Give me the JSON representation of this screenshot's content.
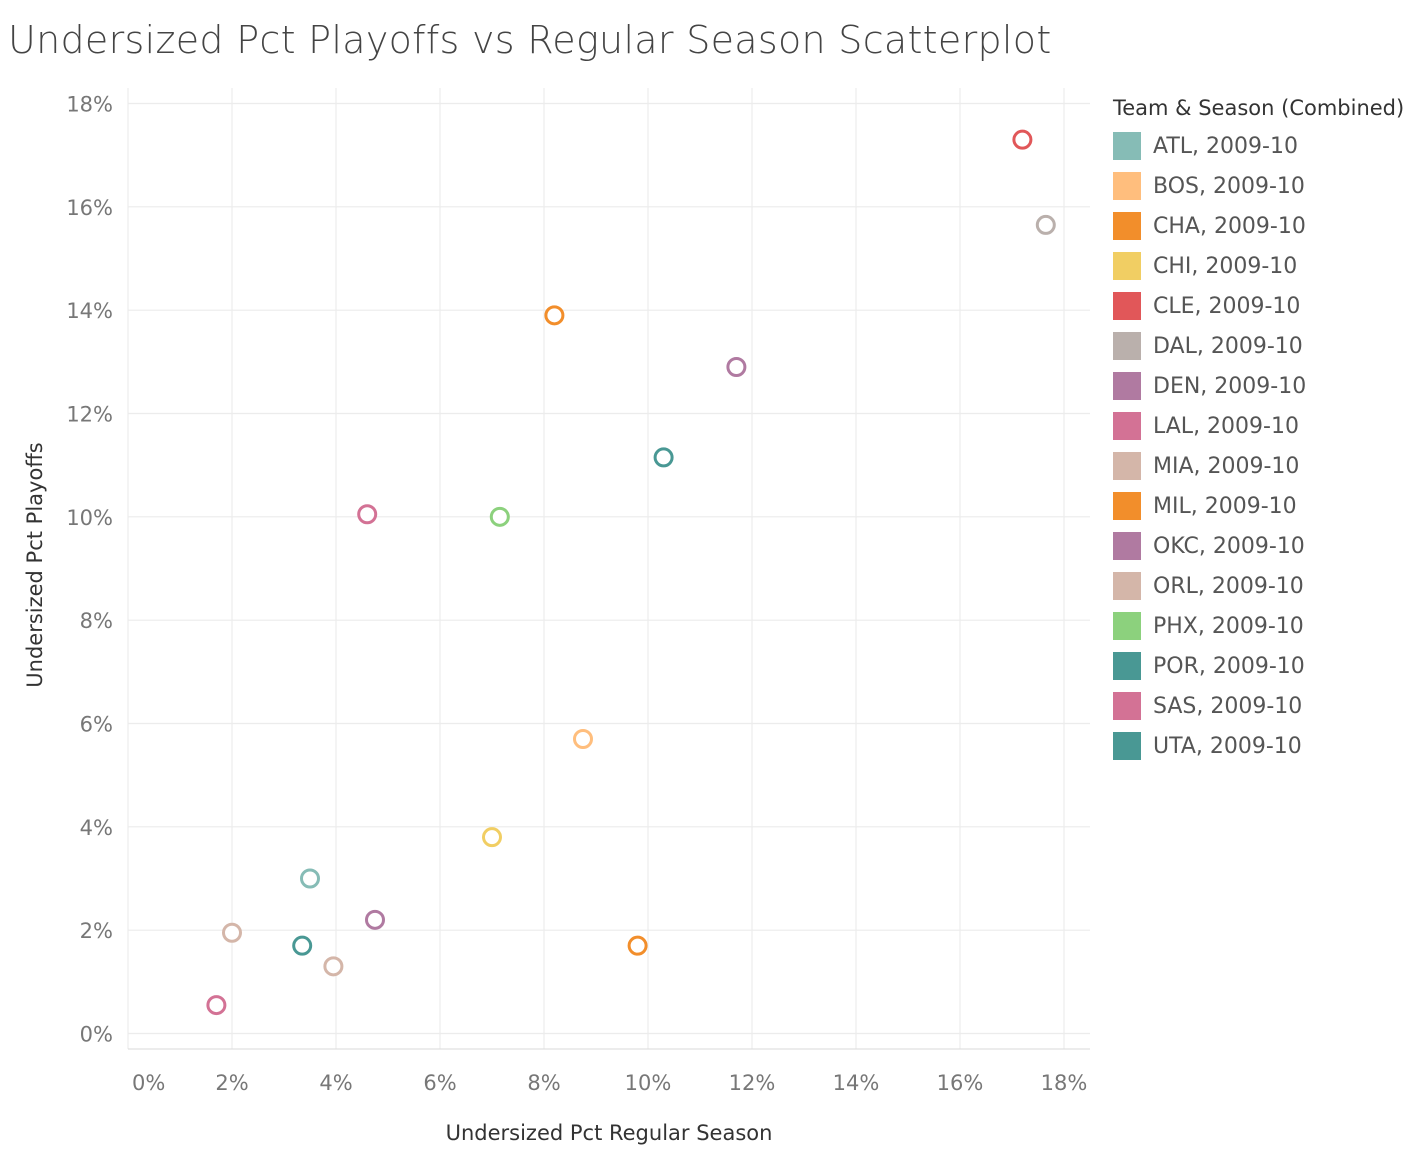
{
  "chart_data": {
    "type": "scatter",
    "title": "Undersized Pct Playoffs vs Regular Season Scatterplot",
    "xlabel": "Undersized Pct Regular Season",
    "ylabel": "Undersized Pct Playoffs",
    "xlim": [
      0,
      18.5
    ],
    "ylim": [
      -0.3,
      18.3
    ],
    "x_ticks": [
      0,
      2,
      4,
      6,
      8,
      10,
      12,
      14,
      16,
      18
    ],
    "y_ticks": [
      0,
      2,
      4,
      6,
      8,
      10,
      12,
      14,
      16,
      18
    ],
    "tick_suffix": "%",
    "grid": true,
    "marker": "hollow-circle",
    "legend": {
      "title": "Team & Season (Combined)",
      "placement": "right"
    },
    "series": [
      {
        "name": "ATL, 2009-10",
        "color": "#86BCB6",
        "x": 3.5,
        "y": 3.0
      },
      {
        "name": "BOS, 2009-10",
        "color": "#FFBE7D",
        "x": 8.75,
        "y": 5.7
      },
      {
        "name": "CHA, 2009-10",
        "color": "#F28E2B",
        "x": 8.2,
        "y": 13.9
      },
      {
        "name": "CHI, 2009-10",
        "color": "#F1CE63",
        "x": 7.0,
        "y": 3.8
      },
      {
        "name": "CLE, 2009-10",
        "color": "#E15759",
        "x": 17.2,
        "y": 17.3
      },
      {
        "name": "DAL, 2009-10",
        "color": "#BAB0AC",
        "x": 17.65,
        "y": 15.65
      },
      {
        "name": "DEN, 2009-10",
        "color": "#B07AA1",
        "x": 4.75,
        "y": 2.2
      },
      {
        "name": "LAL, 2009-10",
        "color": "#D37295",
        "x": 4.6,
        "y": 10.05
      },
      {
        "name": "MIA, 2009-10",
        "color": "#D4B6A9",
        "x": 2.0,
        "y": 1.95
      },
      {
        "name": "MIL, 2009-10",
        "color": "#F28E2B",
        "x": 9.8,
        "y": 1.7
      },
      {
        "name": "OKC, 2009-10",
        "color": "#B07AA1",
        "x": 11.7,
        "y": 12.9
      },
      {
        "name": "ORL, 2009-10",
        "color": "#D4B6A9",
        "x": 3.95,
        "y": 1.3
      },
      {
        "name": "PHX, 2009-10",
        "color": "#8CD17D",
        "x": 7.15,
        "y": 10.0
      },
      {
        "name": "POR, 2009-10",
        "color": "#499894",
        "x": 10.3,
        "y": 11.15
      },
      {
        "name": "SAS, 2009-10",
        "color": "#D37295",
        "x": 1.7,
        "y": 0.55
      },
      {
        "name": "UTA, 2009-10",
        "color": "#499894",
        "x": 3.35,
        "y": 1.7
      }
    ]
  }
}
